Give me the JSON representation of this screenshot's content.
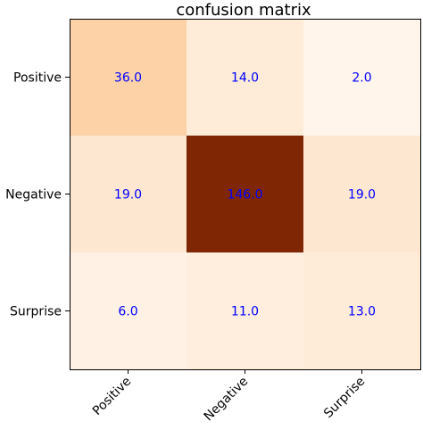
{
  "chart_data": {
    "type": "heatmap",
    "title": "confusion matrix",
    "row_labels": [
      "Positive",
      "Negative",
      "Surprise"
    ],
    "col_labels": [
      "Positive",
      "Negative",
      "Surprise"
    ],
    "values": [
      [
        36.0,
        14.0,
        2.0
      ],
      [
        19.0,
        146.0,
        19.0
      ],
      [
        6.0,
        11.0,
        13.0
      ]
    ],
    "cell_labels": [
      [
        "36.0",
        "14.0",
        "2.0"
      ],
      [
        "19.0",
        "146.0",
        "19.0"
      ],
      [
        "6.0",
        "11.0",
        "13.0"
      ]
    ],
    "colormap": "Oranges",
    "value_range": [
      2.0,
      146.0
    ],
    "label_color": "#0000ff",
    "grid": false,
    "colorbar": false
  }
}
